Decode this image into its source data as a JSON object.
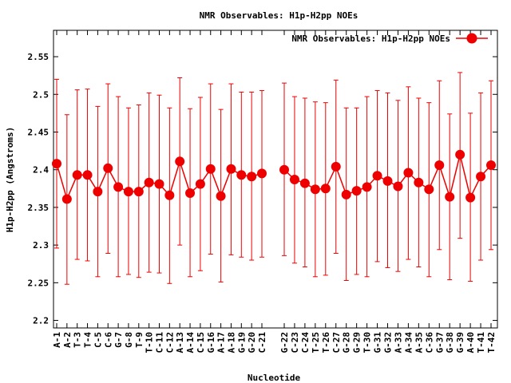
{
  "chart_data": {
    "type": "line",
    "title": "NMR Observables: H1p-H2pp NOEs",
    "xlabel": "Nucleotide",
    "ylabel": "H1p-H2pp (Angstroms)",
    "ylim": [
      2.19,
      2.585
    ],
    "yticks": [
      "2.2",
      "2.25",
      "2.3",
      "2.35",
      "2.4",
      "2.45",
      "2.5",
      "2.55"
    ],
    "legend_position": "top-right",
    "grid": false,
    "series": [
      {
        "name": "NMR Observables: H1p-H2pp NOEs",
        "color": "#ee0000",
        "segments": [
          [
            {
              "x": "A-1",
              "y": 2.408,
              "lo": 2.296,
              "hi": 2.52
            },
            {
              "x": "A-2",
              "y": 2.361,
              "lo": 2.248,
              "hi": 2.473
            },
            {
              "x": "T-3",
              "y": 2.393,
              "lo": 2.281,
              "hi": 2.506
            },
            {
              "x": "T-4",
              "y": 2.393,
              "lo": 2.279,
              "hi": 2.507
            },
            {
              "x": "C-5",
              "y": 2.371,
              "lo": 2.258,
              "hi": 2.484
            },
            {
              "x": "C-6",
              "y": 2.402,
              "lo": 2.289,
              "hi": 2.514
            },
            {
              "x": "G-7",
              "y": 2.377,
              "lo": 2.258,
              "hi": 2.497
            },
            {
              "x": "G-8",
              "y": 2.371,
              "lo": 2.261,
              "hi": 2.482
            },
            {
              "x": "T-9",
              "y": 2.371,
              "lo": 2.257,
              "hi": 2.486
            },
            {
              "x": "T-10",
              "y": 2.383,
              "lo": 2.264,
              "hi": 2.502
            },
            {
              "x": "C-11",
              "y": 2.381,
              "lo": 2.263,
              "hi": 2.499
            },
            {
              "x": "C-12",
              "y": 2.366,
              "lo": 2.249,
              "hi": 2.482
            },
            {
              "x": "A-13",
              "y": 2.411,
              "lo": 2.3,
              "hi": 2.522
            },
            {
              "x": "A-14",
              "y": 2.369,
              "lo": 2.258,
              "hi": 2.481
            },
            {
              "x": "C-15",
              "y": 2.381,
              "lo": 2.266,
              "hi": 2.496
            },
            {
              "x": "G-16",
              "y": 2.401,
              "lo": 2.288,
              "hi": 2.514
            },
            {
              "x": "A-17",
              "y": 2.365,
              "lo": 2.251,
              "hi": 2.48
            },
            {
              "x": "A-18",
              "y": 2.401,
              "lo": 2.287,
              "hi": 2.514
            },
            {
              "x": "G-19",
              "y": 2.393,
              "lo": 2.284,
              "hi": 2.503
            },
            {
              "x": "G-20",
              "y": 2.391,
              "lo": 2.28,
              "hi": 2.503
            },
            {
              "x": "C-21",
              "y": 2.395,
              "lo": 2.284,
              "hi": 2.505
            }
          ],
          [
            {
              "x": "G-22",
              "y": 2.4,
              "lo": 2.286,
              "hi": 2.515
            },
            {
              "x": "C-23",
              "y": 2.387,
              "lo": 2.276,
              "hi": 2.497
            },
            {
              "x": "C-24",
              "y": 2.382,
              "lo": 2.271,
              "hi": 2.495
            },
            {
              "x": "T-25",
              "y": 2.374,
              "lo": 2.258,
              "hi": 2.49
            },
            {
              "x": "T-26",
              "y": 2.375,
              "lo": 2.26,
              "hi": 2.489
            },
            {
              "x": "C-27",
              "y": 2.404,
              "lo": 2.289,
              "hi": 2.519
            },
            {
              "x": "G-28",
              "y": 2.367,
              "lo": 2.253,
              "hi": 2.482
            },
            {
              "x": "G-29",
              "y": 2.372,
              "lo": 2.261,
              "hi": 2.482
            },
            {
              "x": "T-30",
              "y": 2.377,
              "lo": 2.258,
              "hi": 2.497
            },
            {
              "x": "G-31",
              "y": 2.392,
              "lo": 2.278,
              "hi": 2.505
            },
            {
              "x": "G-32",
              "y": 2.385,
              "lo": 2.27,
              "hi": 2.502
            },
            {
              "x": "A-33",
              "y": 2.378,
              "lo": 2.265,
              "hi": 2.492
            },
            {
              "x": "A-34",
              "y": 2.396,
              "lo": 2.281,
              "hi": 2.51
            },
            {
              "x": "A-35",
              "y": 2.383,
              "lo": 2.271,
              "hi": 2.495
            },
            {
              "x": "C-36",
              "y": 2.374,
              "lo": 2.258,
              "hi": 2.489
            },
            {
              "x": "G-37",
              "y": 2.406,
              "lo": 2.294,
              "hi": 2.518
            },
            {
              "x": "G-38",
              "y": 2.364,
              "lo": 2.254,
              "hi": 2.474
            },
            {
              "x": "G-39",
              "y": 2.42,
              "lo": 2.309,
              "hi": 2.529
            },
            {
              "x": "A-40",
              "y": 2.363,
              "lo": 2.252,
              "hi": 2.475
            },
            {
              "x": "T-41",
              "y": 2.391,
              "lo": 2.28,
              "hi": 2.502
            },
            {
              "x": "T-42",
              "y": 2.406,
              "lo": 2.294,
              "hi": 2.518
            }
          ]
        ]
      }
    ]
  }
}
